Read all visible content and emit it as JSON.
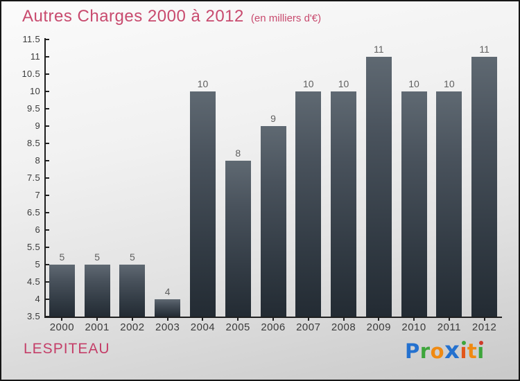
{
  "chart_data": {
    "type": "bar",
    "title": "Autres Charges 2000 à 2012",
    "subtitle": "(en milliers d'€)",
    "categories": [
      "2000",
      "2001",
      "2002",
      "2003",
      "2004",
      "2005",
      "2006",
      "2007",
      "2008",
      "2009",
      "2010",
      "2011",
      "2012"
    ],
    "values": [
      5,
      5,
      5,
      4,
      10,
      8,
      9,
      10,
      10,
      11,
      10,
      10,
      11
    ],
    "xlabel": "",
    "ylabel": "",
    "ylim": [
      3.5,
      11.5
    ],
    "ytick_step": 0.5,
    "ytick_labels": [
      "3.5",
      "4",
      "4.5",
      "5",
      "5.5",
      "6",
      "6.5",
      "7",
      "7.5",
      "8",
      "8.5",
      "9",
      "9.5",
      "10",
      "10.5",
      "11",
      "11.5"
    ],
    "grid": false,
    "legend": false,
    "value_labels_shown": true
  },
  "colors": {
    "accent_pink": "#c84a6e",
    "company_pink": "#c43e68",
    "axis": "#1f1f1f",
    "tick_label": "#3a3a3a",
    "x_label": "#3a3a3a",
    "value_label": "#5e5e5e",
    "bar_gradient_top": "#5f6972",
    "bar_gradient_upper_mid": "#49525c",
    "bar_gradient_lower_mid": "#323b44",
    "bar_gradient_bottom": "#232b33"
  },
  "footer": {
    "company": "LESPITEAU",
    "logo_name": "Proxiti",
    "logo_letters": [
      {
        "char": "P",
        "color": "#2471cf"
      },
      {
        "char": "r",
        "color": "#3da53b"
      },
      {
        "char": "o",
        "color": "#f08a12"
      },
      {
        "char": "x",
        "color": "#2471cf",
        "large": true
      },
      {
        "char": "i",
        "color": "#e2561b",
        "dot_color": "#3da53b"
      },
      {
        "char": "t",
        "color": "#f08a12"
      },
      {
        "char": "i",
        "color": "#3da53b",
        "dot_color": "#cf3a2a"
      }
    ]
  }
}
